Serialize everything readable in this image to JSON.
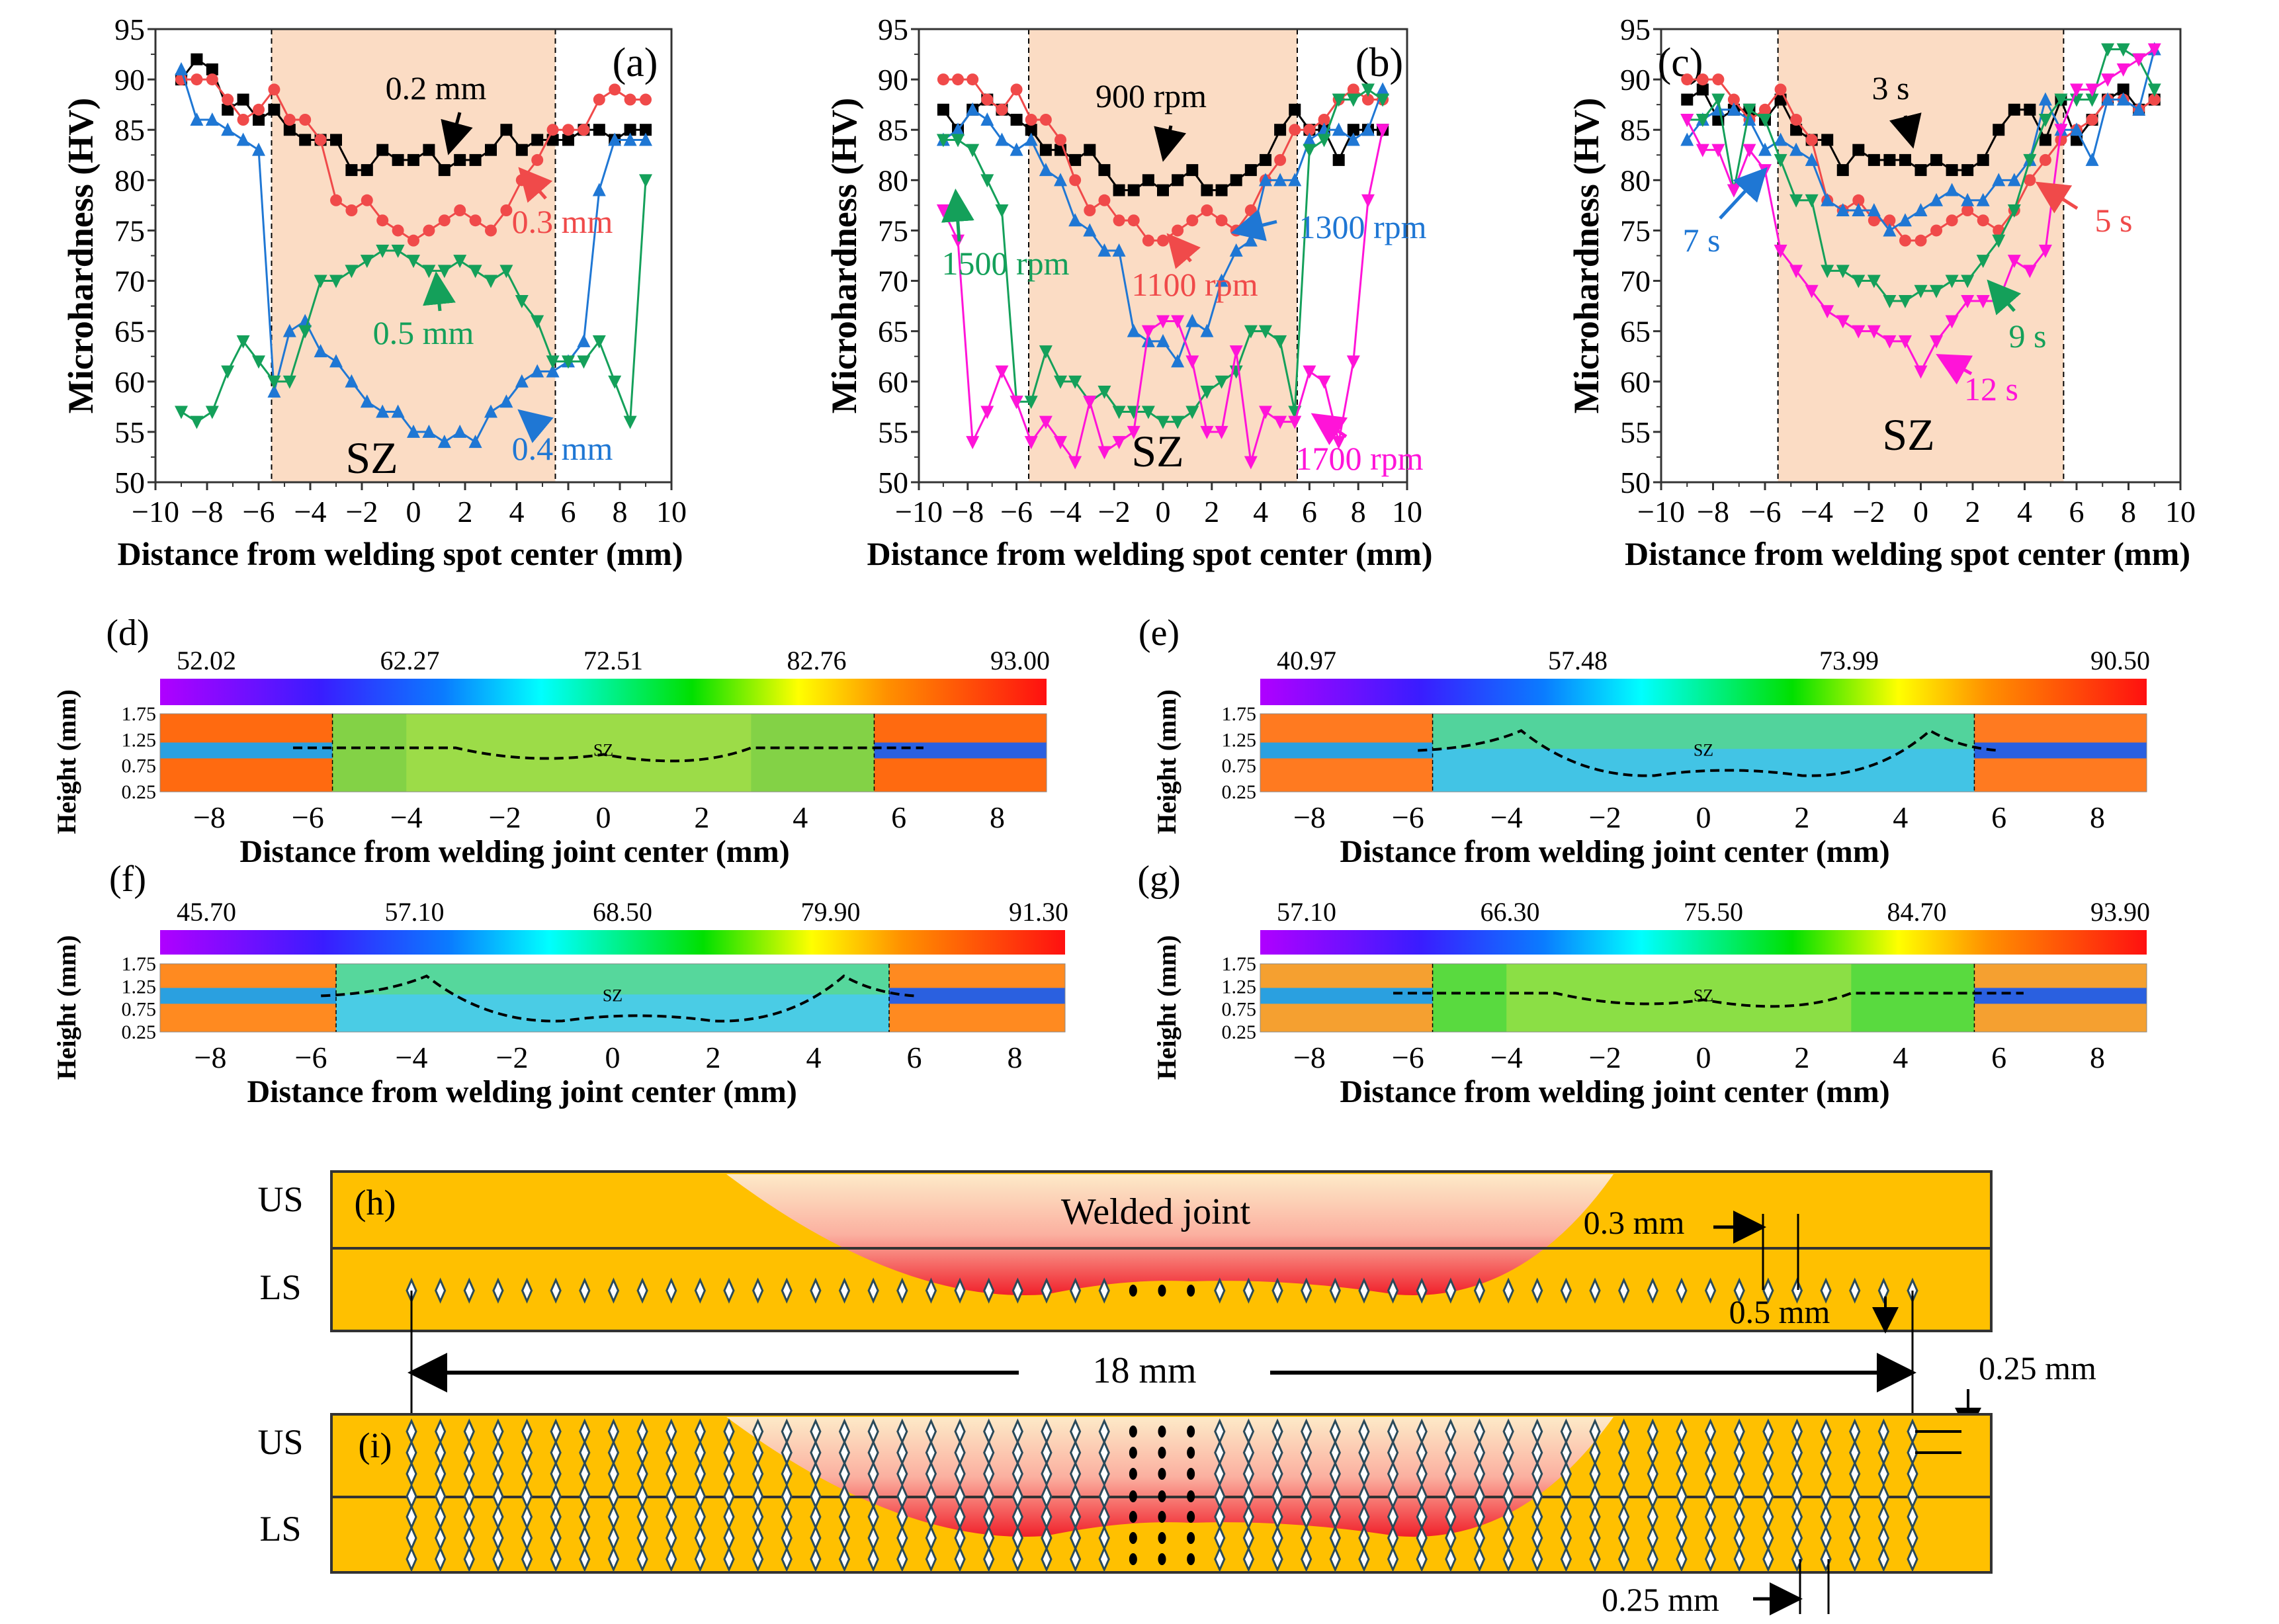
{
  "chart_data": [
    {
      "id": "a",
      "type": "line",
      "panel_label": "(a)",
      "xlabel": "Distance from welding spot center (mm)",
      "ylabel": "Microhardness (HV)",
      "xlim": [
        -10,
        10
      ],
      "ylim": [
        50,
        95
      ],
      "xticks": [
        "−10",
        "−8",
        "−6",
        "−4",
        "−2",
        "0",
        "2",
        "4",
        "6",
        "8",
        "10"
      ],
      "yticks": [
        "50",
        "55",
        "60",
        "65",
        "70",
        "75",
        "80",
        "85",
        "90",
        "95"
      ],
      "shaded_region": {
        "label": "SZ",
        "x_range": [
          -5.5,
          5.5
        ],
        "color": "#fbdcc4"
      },
      "x": [
        -9,
        -8.4,
        -7.8,
        -7.2,
        -6.6,
        -6,
        -5.4,
        -4.8,
        -4.2,
        -3.6,
        -3,
        -2.4,
        -1.8,
        -1.2,
        -0.6,
        0,
        0.6,
        1.2,
        1.8,
        2.4,
        3,
        3.6,
        4.2,
        4.8,
        5.4,
        6,
        6.6,
        7.2,
        7.8,
        8.4,
        9
      ],
      "series": [
        {
          "name": "0.2 mm",
          "color": "#000000",
          "marker": "square",
          "values": [
            90,
            92,
            91,
            87,
            88,
            86,
            87,
            85,
            84,
            84,
            84,
            81,
            81,
            83,
            82,
            82,
            83,
            81,
            82,
            82,
            83,
            85,
            83,
            84,
            84,
            84,
            85,
            85,
            84,
            85,
            85
          ]
        },
        {
          "name": "0.3 mm",
          "color": "#f04a4a",
          "marker": "circle",
          "values": [
            90,
            90,
            90,
            88,
            86,
            87,
            89,
            86,
            86,
            84,
            78,
            77,
            78,
            76,
            75,
            74,
            75,
            76,
            77,
            76,
            75,
            77,
            80,
            82,
            85,
            85,
            85,
            88,
            89,
            88,
            88
          ]
        },
        {
          "name": "0.4 mm",
          "color": "#1f77d4",
          "marker": "triangle-up",
          "values": [
            91,
            86,
            86,
            85,
            84,
            83,
            59,
            65,
            66,
            63,
            62,
            60,
            58,
            57,
            57,
            55,
            55,
            54,
            55,
            54,
            57,
            58,
            60,
            61,
            61,
            62,
            64,
            79,
            84,
            84,
            84
          ]
        },
        {
          "name": "0.5 mm",
          "color": "#14a05a",
          "marker": "triangle-down",
          "values": [
            57,
            56,
            57,
            61,
            64,
            62,
            60,
            60,
            65,
            70,
            70,
            71,
            72,
            73,
            73,
            72,
            71,
            71,
            72,
            71,
            70,
            71,
            68,
            66,
            62,
            62,
            62,
            64,
            60,
            56,
            80
          ]
        }
      ]
    },
    {
      "id": "b",
      "type": "line",
      "panel_label": "(b)",
      "xlabel": "Distance from welding spot center (mm)",
      "ylabel": "Microhardness (HV)",
      "xlim": [
        -10,
        10
      ],
      "ylim": [
        50,
        95
      ],
      "xticks": [
        "−10",
        "−8",
        "−6",
        "−4",
        "−2",
        "0",
        "2",
        "4",
        "6",
        "8",
        "10"
      ],
      "yticks": [
        "50",
        "55",
        "60",
        "65",
        "70",
        "75",
        "80",
        "85",
        "90",
        "95"
      ],
      "shaded_region": {
        "label": "SZ",
        "x_range": [
          -5.5,
          5.5
        ],
        "color": "#fbdcc4"
      },
      "x": [
        -9,
        -8.4,
        -7.8,
        -7.2,
        -6.6,
        -6,
        -5.4,
        -4.8,
        -4.2,
        -3.6,
        -3,
        -2.4,
        -1.8,
        -1.2,
        -0.6,
        0,
        0.6,
        1.2,
        1.8,
        2.4,
        3,
        3.6,
        4.2,
        4.8,
        5.4,
        6,
        6.6,
        7.2,
        7.8,
        8.4,
        9
      ],
      "series": [
        {
          "name": "900 rpm",
          "color": "#000000",
          "marker": "square",
          "values": [
            87,
            85,
            87,
            88,
            87,
            86,
            85,
            83,
            83,
            82,
            83,
            81,
            79,
            79,
            80,
            79,
            80,
            81,
            79,
            79,
            80,
            81,
            82,
            85,
            87,
            85,
            85,
            82,
            85,
            85,
            85
          ]
        },
        {
          "name": "1100 rpm",
          "color": "#f04a4a",
          "marker": "circle",
          "values": [
            90,
            90,
            90,
            88,
            87,
            89,
            86,
            86,
            84,
            80,
            77,
            78,
            76,
            76,
            74,
            74,
            75,
            76,
            77,
            76,
            75,
            77,
            80,
            82,
            85,
            85,
            86,
            88,
            89,
            88,
            88
          ]
        },
        {
          "name": "1300 rpm",
          "color": "#1f77d4",
          "marker": "triangle-up",
          "values": [
            84,
            85,
            87,
            86,
            84,
            83,
            84,
            81,
            80,
            76,
            75,
            73,
            73,
            65,
            64,
            64,
            62,
            66,
            65,
            70,
            73,
            74,
            80,
            80,
            80,
            84,
            85,
            85,
            84,
            85,
            89
          ]
        },
        {
          "name": "1500 rpm",
          "color": "#14a05a",
          "marker": "triangle-down",
          "values": [
            84,
            84,
            83,
            80,
            77,
            58,
            58,
            63,
            60,
            60,
            58,
            59,
            57,
            57,
            57,
            56,
            56,
            57,
            59,
            60,
            61,
            65,
            65,
            64,
            57,
            83,
            84,
            88,
            88,
            89,
            88
          ]
        },
        {
          "name": "1700 rpm",
          "color": "#ff14d8",
          "marker": "triangle-down",
          "values": [
            77,
            74,
            54,
            57,
            61,
            58,
            54,
            56,
            54,
            52,
            58,
            53,
            54,
            55,
            65,
            66,
            66,
            62,
            55,
            55,
            63,
            52,
            57,
            56,
            56,
            61,
            60,
            54,
            62,
            78,
            85
          ]
        }
      ]
    },
    {
      "id": "c",
      "type": "line",
      "panel_label": "(c)",
      "xlabel": "Distance from welding spot center (mm)",
      "ylabel": "Microhardness (HV)",
      "xlim": [
        -10,
        10
      ],
      "ylim": [
        50,
        95
      ],
      "xticks": [
        "−10",
        "−8",
        "−6",
        "−4",
        "−2",
        "0",
        "2",
        "4",
        "6",
        "8",
        "10"
      ],
      "yticks": [
        "50",
        "55",
        "60",
        "65",
        "70",
        "75",
        "80",
        "85",
        "90",
        "95"
      ],
      "shaded_region": {
        "label": "SZ",
        "x_range": [
          -5.5,
          5.5
        ],
        "color": "#fbdcc4"
      },
      "x": [
        -9,
        -8.4,
        -7.8,
        -7.2,
        -6.6,
        -6,
        -5.4,
        -4.8,
        -4.2,
        -3.6,
        -3,
        -2.4,
        -1.8,
        -1.2,
        -0.6,
        0,
        0.6,
        1.2,
        1.8,
        2.4,
        3,
        3.6,
        4.2,
        4.8,
        5.4,
        6,
        6.6,
        7.2,
        7.8,
        8.4,
        9
      ],
      "series": [
        {
          "name": "3 s",
          "color": "#000000",
          "marker": "square",
          "values": [
            88,
            89,
            86,
            87,
            87,
            86,
            88,
            85,
            84,
            84,
            81,
            83,
            82,
            82,
            82,
            81,
            82,
            81,
            81,
            82,
            85,
            87,
            87,
            84,
            88,
            84,
            86,
            88,
            89,
            87,
            88
          ]
        },
        {
          "name": "5 s",
          "color": "#f04a4a",
          "marker": "circle",
          "values": [
            90,
            90,
            90,
            88,
            86,
            87,
            89,
            86,
            84,
            78,
            77,
            78,
            76,
            76,
            74,
            74,
            75,
            76,
            77,
            76,
            75,
            77,
            80,
            82,
            84,
            85,
            86,
            88,
            88,
            87,
            88
          ]
        },
        {
          "name": "7 s",
          "color": "#1f77d4",
          "marker": "triangle-up",
          "values": [
            84,
            86,
            87,
            87,
            86,
            83,
            84,
            83,
            82,
            78,
            77,
            77,
            77,
            75,
            76,
            77,
            78,
            79,
            78,
            78,
            80,
            80,
            82,
            88,
            85,
            85,
            82,
            88,
            88,
            87,
            93
          ]
        },
        {
          "name": "9 s",
          "color": "#14a05a",
          "marker": "triangle-down",
          "values": [
            86,
            86,
            88,
            79,
            87,
            86,
            82,
            78,
            78,
            71,
            71,
            70,
            70,
            68,
            68,
            69,
            69,
            70,
            70,
            72,
            74,
            77,
            82,
            86,
            88,
            88,
            88,
            93,
            93,
            92,
            89
          ]
        },
        {
          "name": "12 s",
          "color": "#ff14d8",
          "marker": "triangle-down",
          "values": [
            86,
            83,
            83,
            79,
            83,
            81,
            73,
            71,
            69,
            67,
            66,
            65,
            65,
            64,
            64,
            61,
            64,
            66,
            68,
            68,
            68,
            72,
            71,
            73,
            85,
            89,
            89,
            90,
            91,
            92,
            93
          ]
        }
      ]
    },
    {
      "id": "d",
      "type": "heatmap",
      "panel_label": "(d)",
      "xlabel": "Distance from welding joint center (mm)",
      "ylabel": "Height (mm)",
      "xlim": [
        -9,
        9
      ],
      "xticks": [
        "−8",
        "−6",
        "−4",
        "−2",
        "0",
        "2",
        "4",
        "6",
        "8"
      ],
      "yticks": [
        "1.75",
        "1.25",
        "0.75",
        "0.25"
      ],
      "colorbar_ticks": [
        "52.02",
        "62.27",
        "72.51",
        "82.76",
        "93.00"
      ],
      "annotation": "SZ"
    },
    {
      "id": "e",
      "type": "heatmap",
      "panel_label": "(e)",
      "xlabel": "Distance from welding joint center (mm)",
      "ylabel": "Height (mm)",
      "xlim": [
        -9,
        9
      ],
      "xticks": [
        "−8",
        "−6",
        "−4",
        "−2",
        "0",
        "2",
        "4",
        "6",
        "8"
      ],
      "yticks": [
        "1.75",
        "1.25",
        "0.75",
        "0.25"
      ],
      "colorbar_ticks": [
        "40.97",
        "57.48",
        "73.99",
        "90.50"
      ],
      "annotation": "SZ"
    },
    {
      "id": "f",
      "type": "heatmap",
      "panel_label": "(f)",
      "xlabel": "Distance from welding joint center (mm)",
      "ylabel": "Height (mm)",
      "xlim": [
        -9,
        9
      ],
      "xticks": [
        "−8",
        "−6",
        "−4",
        "−2",
        "0",
        "2",
        "4",
        "6",
        "8"
      ],
      "yticks": [
        "1.75",
        "1.25",
        "0.75",
        "0.25"
      ],
      "colorbar_ticks": [
        "45.70",
        "57.10",
        "68.50",
        "79.90",
        "91.30"
      ],
      "annotation": "SZ"
    },
    {
      "id": "g",
      "type": "heatmap",
      "panel_label": "(g)",
      "xlabel": "Distance from welding joint center (mm)",
      "ylabel": "Height (mm)",
      "xlim": [
        -9,
        9
      ],
      "xticks": [
        "−8",
        "−6",
        "−4",
        "−2",
        "0",
        "2",
        "4",
        "6",
        "8"
      ],
      "yticks": [
        "1.75",
        "1.25",
        "0.75",
        "0.25"
      ],
      "colorbar_ticks": [
        "57.10",
        "66.30",
        "75.50",
        "84.70",
        "93.90"
      ],
      "annotation": "SZ"
    }
  ],
  "diagram": {
    "h": {
      "panel_label": "(h)",
      "upper": "US",
      "lower": "LS",
      "joint_label": "Welded joint",
      "spacing_label": "0.3 mm",
      "depth_label": "0.5 mm"
    },
    "span_label": "18 mm",
    "row_gap_label": "0.25 mm",
    "i": {
      "panel_label": "(i)",
      "upper": "US",
      "lower": "LS",
      "spacing_label": "0.25 mm"
    },
    "colors": {
      "sheet": "#ffc000",
      "joint_top": "#fde9c4",
      "joint_bottom": "#f0202a"
    }
  }
}
